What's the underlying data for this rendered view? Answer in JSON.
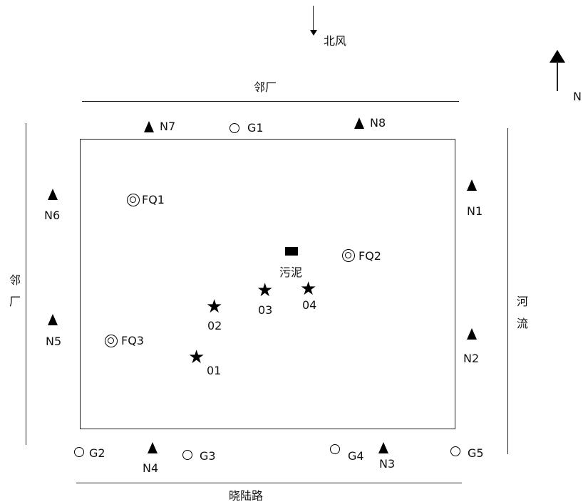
{
  "wind": {
    "label": "北风"
  },
  "north": {
    "label": "N"
  },
  "top_neighbor": {
    "label": "邻厂"
  },
  "left_neighbor": {
    "line1": "邻",
    "line2": "厂"
  },
  "river": {
    "line1": "河",
    "line2": "流"
  },
  "road": {
    "label": "晓陆路"
  },
  "sludge": {
    "label": "污泥"
  },
  "noise_points": [
    "N1",
    "N2",
    "N3",
    "N4",
    "N5",
    "N6",
    "N7",
    "N8"
  ],
  "groundwater_points": [
    "G1",
    "G2",
    "G3",
    "G4",
    "G5"
  ],
  "exhaust_points": [
    "FQ1",
    "FQ2",
    "FQ3"
  ],
  "soil_points": [
    "01",
    "02",
    "03",
    "04"
  ]
}
